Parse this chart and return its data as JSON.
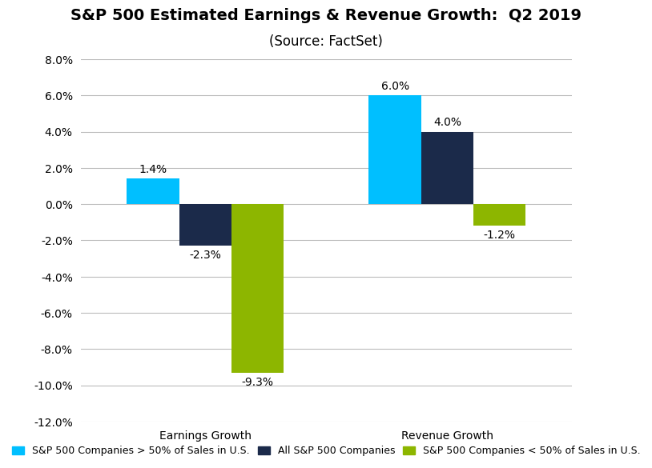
{
  "title_line1": "S&P 500 Estimated Earnings & Revenue Growth:  Q2 2019",
  "title_line2": "(Source: FactSet)",
  "categories": [
    "Earnings Growth",
    "Revenue Growth"
  ],
  "series": [
    {
      "name": "S&P 500 Companies > 50% of Sales in U.S.",
      "color": "#00BFFF",
      "values": [
        1.4,
        6.0
      ]
    },
    {
      "name": "All S&P 500 Companies",
      "color": "#1B2A4A",
      "values": [
        -2.3,
        4.0
      ]
    },
    {
      "name": "S&P 500 Companies < 50% of Sales in U.S.",
      "color": "#8DB600",
      "values": [
        -9.3,
        -1.2
      ]
    }
  ],
  "ylim": [
    -12,
    8
  ],
  "yticks": [
    -12,
    -10,
    -8,
    -6,
    -4,
    -2,
    0,
    2,
    4,
    6,
    8
  ],
  "ytick_labels": [
    "-12.0%",
    "-10.0%",
    "-8.0%",
    "-6.0%",
    "-4.0%",
    "-2.0%",
    "0.0%",
    "2.0%",
    "4.0%",
    "6.0%",
    "8.0%"
  ],
  "background_color": "#FFFFFF",
  "grid_color": "#BBBBBB",
  "title_fontsize": 14,
  "subtitle_fontsize": 12,
  "tick_fontsize": 10,
  "label_fontsize": 10,
  "bar_width": 0.16,
  "group_centers": [
    0.38,
    1.12
  ],
  "xlim": [
    0.0,
    1.5
  ]
}
